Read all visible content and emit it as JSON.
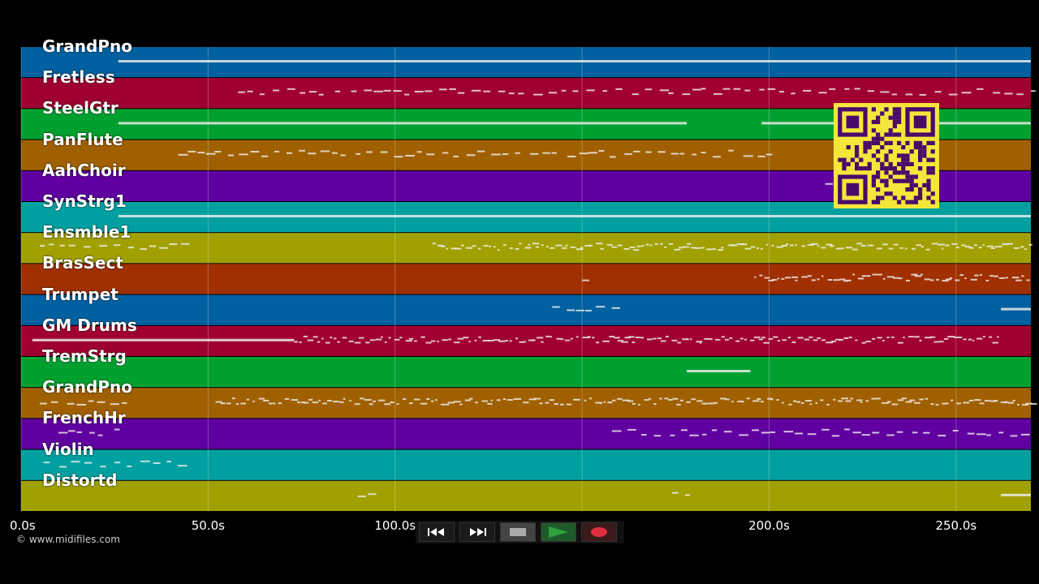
{
  "tracks": [
    {
      "name": "GrandPno",
      "color": "#0060a0"
    },
    {
      "name": "Fretless",
      "color": "#a00030"
    },
    {
      "name": "SteelGtr",
      "color": "#00a030"
    },
    {
      "name": "PanFlute",
      "color": "#a06000"
    },
    {
      "name": "AahChoir",
      "color": "#6000a0"
    },
    {
      "name": "SynStrg1",
      "color": "#00a0a0"
    },
    {
      "name": "Ensmble1",
      "color": "#a0a000"
    },
    {
      "name": "BrasSect",
      "color": "#a03000"
    },
    {
      "name": "Trumpet",
      "color": "#0060a0"
    },
    {
      "name": "GM Drums",
      "color": "#a00030"
    },
    {
      "name": "TremStrg",
      "color": "#00a030"
    },
    {
      "name": "GrandPno",
      "color": "#a06000"
    },
    {
      "name": "FrenchHr",
      "color": "#6000a0"
    },
    {
      "name": "Violin",
      "color": "#00a0a0"
    },
    {
      "name": "Distortd",
      "color": "#a0a000"
    }
  ],
  "axis": {
    "ticks": [
      "0.0s",
      "50.0s",
      "100.0s",
      "150.0s",
      "200.0s",
      "250.0s"
    ],
    "tick_values": [
      0,
      50,
      100,
      150,
      200,
      250
    ],
    "max_seconds": 270
  },
  "copyright": "© www.midifiles.com",
  "transport": {
    "rewind": "rewind-icon",
    "fast_forward": "fast-forward-icon",
    "stop": "stop-icon",
    "play": "play-icon",
    "record": "record-icon",
    "play_color": "#30a040",
    "record_color": "#e03040"
  },
  "qr_colors": {
    "fg": "#4a0a6a",
    "bg": "#f5e63a"
  }
}
